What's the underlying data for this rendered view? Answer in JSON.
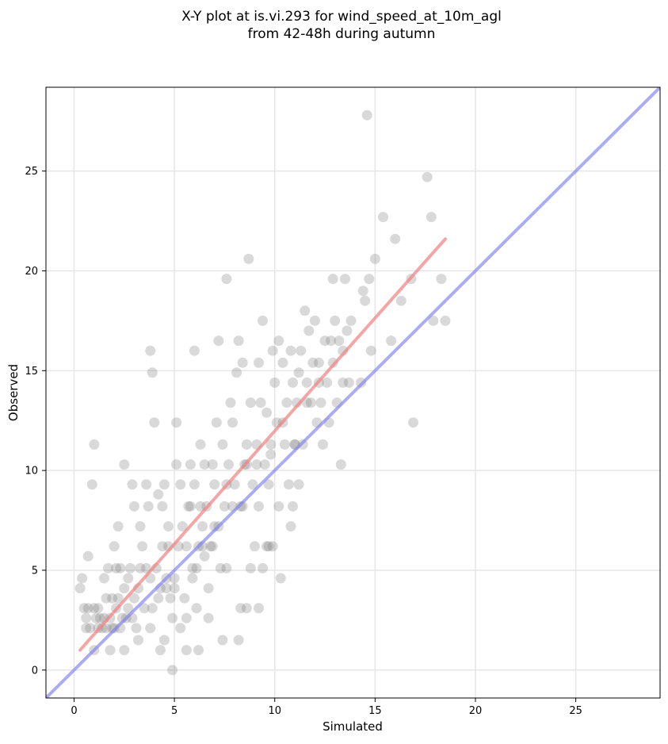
{
  "chart_data": {
    "type": "scatter",
    "title": "X-Y plot at is.vi.293 for wind_speed_at_10m_agl\nfrom 42-48h during autumn",
    "title_lines": [
      "X-Y plot at is.vi.293 for wind_speed_at_10m_agl",
      "from 42-48h during autumn"
    ],
    "xlabel": "Simulated",
    "ylabel": "Observed",
    "xlim": [
      -1.4,
      29.2
    ],
    "ylim": [
      -1.4,
      29.2
    ],
    "xticks": [
      0,
      5,
      10,
      15,
      20,
      25
    ],
    "yticks": [
      0,
      5,
      10,
      15,
      20,
      25
    ],
    "grid": true,
    "colors": {
      "points": "#808080",
      "fit_line": "#f08080",
      "identity_line": "#8080f0",
      "grid": "#e6e6e6"
    },
    "series": [
      {
        "points": [
          [
            0.4,
            4.6
          ],
          [
            0.3,
            4.1
          ],
          [
            0.5,
            3.1
          ],
          [
            0.7,
            3.1
          ],
          [
            0.6,
            2.6
          ],
          [
            0.8,
            2.1
          ],
          [
            0.6,
            2.1
          ],
          [
            0.7,
            5.7
          ],
          [
            0.9,
            9.3
          ],
          [
            1.0,
            11.3
          ],
          [
            1.0,
            3.1
          ],
          [
            1.1,
            2.6
          ],
          [
            1.2,
            3.1
          ],
          [
            1.2,
            2.1
          ],
          [
            1.3,
            2.6
          ],
          [
            1.4,
            2.1
          ],
          [
            1.5,
            2.6
          ],
          [
            1.5,
            4.6
          ],
          [
            1.6,
            2.1
          ],
          [
            1.7,
            5.1
          ],
          [
            1.8,
            2.6
          ],
          [
            1.9,
            3.6
          ],
          [
            2.0,
            2.1
          ],
          [
            2.0,
            6.2
          ],
          [
            2.1,
            5.1
          ],
          [
            2.2,
            7.2
          ],
          [
            2.2,
            3.6
          ],
          [
            2.3,
            2.1
          ],
          [
            2.4,
            2.6
          ],
          [
            2.5,
            10.3
          ],
          [
            2.5,
            4.1
          ],
          [
            2.6,
            2.6
          ],
          [
            2.7,
            3.1
          ],
          [
            2.8,
            5.1
          ],
          [
            2.9,
            9.3
          ],
          [
            3.0,
            8.2
          ],
          [
            3.0,
            3.6
          ],
          [
            3.1,
            2.1
          ],
          [
            3.2,
            4.1
          ],
          [
            3.3,
            7.2
          ],
          [
            3.4,
            6.2
          ],
          [
            3.5,
            3.1
          ],
          [
            3.6,
            5.1
          ],
          [
            3.7,
            8.2
          ],
          [
            3.8,
            16.0
          ],
          [
            3.9,
            14.9
          ],
          [
            3.8,
            4.6
          ],
          [
            4.0,
            12.4
          ],
          [
            4.1,
            5.1
          ],
          [
            4.2,
            8.8
          ],
          [
            4.3,
            4.1
          ],
          [
            4.4,
            6.2
          ],
          [
            4.5,
            9.3
          ],
          [
            4.6,
            4.6
          ],
          [
            4.7,
            7.2
          ],
          [
            4.8,
            3.6
          ],
          [
            4.9,
            2.6
          ],
          [
            5.0,
            4.1
          ],
          [
            5.1,
            10.3
          ],
          [
            5.1,
            12.4
          ],
          [
            5.2,
            6.2
          ],
          [
            5.3,
            9.3
          ],
          [
            5.4,
            7.2
          ],
          [
            5.5,
            3.6
          ],
          [
            5.6,
            2.6
          ],
          [
            5.7,
            8.2
          ],
          [
            5.8,
            10.3
          ],
          [
            5.9,
            5.1
          ],
          [
            6.0,
            9.3
          ],
          [
            6.0,
            16.0
          ],
          [
            6.1,
            3.1
          ],
          [
            6.2,
            6.2
          ],
          [
            6.3,
            11.3
          ],
          [
            6.4,
            7.2
          ],
          [
            6.5,
            10.3
          ],
          [
            6.6,
            8.2
          ],
          [
            6.7,
            2.6
          ],
          [
            6.8,
            6.2
          ],
          [
            6.9,
            10.3
          ],
          [
            7.0,
            9.3
          ],
          [
            7.1,
            12.4
          ],
          [
            7.2,
            16.5
          ],
          [
            7.3,
            5.1
          ],
          [
            7.4,
            11.3
          ],
          [
            7.5,
            8.2
          ],
          [
            7.6,
            19.6
          ],
          [
            7.7,
            10.3
          ],
          [
            7.8,
            13.4
          ],
          [
            7.9,
            12.4
          ],
          [
            8.0,
            9.3
          ],
          [
            8.1,
            14.9
          ],
          [
            8.2,
            16.5
          ],
          [
            8.3,
            8.2
          ],
          [
            8.4,
            15.4
          ],
          [
            8.5,
            10.3
          ],
          [
            8.6,
            11.3
          ],
          [
            8.7,
            20.6
          ],
          [
            8.8,
            13.4
          ],
          [
            8.9,
            9.3
          ],
          [
            9.0,
            6.2
          ],
          [
            9.1,
            11.3
          ],
          [
            9.2,
            15.4
          ],
          [
            9.3,
            13.4
          ],
          [
            9.4,
            17.5
          ],
          [
            9.5,
            10.3
          ],
          [
            9.6,
            12.9
          ],
          [
            9.7,
            6.2
          ],
          [
            9.8,
            11.3
          ],
          [
            9.9,
            16.0
          ],
          [
            10.0,
            14.4
          ],
          [
            10.1,
            12.4
          ],
          [
            10.2,
            16.5
          ],
          [
            10.3,
            4.6
          ],
          [
            10.4,
            15.4
          ],
          [
            10.5,
            11.3
          ],
          [
            10.6,
            13.4
          ],
          [
            10.7,
            9.3
          ],
          [
            10.8,
            16.0
          ],
          [
            10.9,
            14.4
          ],
          [
            11.0,
            11.3
          ],
          [
            11.1,
            13.4
          ],
          [
            11.2,
            14.9
          ],
          [
            11.3,
            16.0
          ],
          [
            11.4,
            11.3
          ],
          [
            11.5,
            18.0
          ],
          [
            11.6,
            14.4
          ],
          [
            11.7,
            17.0
          ],
          [
            11.8,
            13.4
          ],
          [
            11.9,
            15.4
          ],
          [
            12.0,
            17.5
          ],
          [
            12.1,
            12.4
          ],
          [
            12.2,
            15.4
          ],
          [
            12.3,
            13.4
          ],
          [
            12.4,
            11.3
          ],
          [
            12.5,
            16.5
          ],
          [
            12.6,
            14.4
          ],
          [
            12.7,
            12.4
          ],
          [
            12.8,
            16.5
          ],
          [
            12.9,
            19.6
          ],
          [
            13.0,
            17.5
          ],
          [
            13.1,
            13.4
          ],
          [
            13.2,
            16.5
          ],
          [
            13.3,
            10.3
          ],
          [
            13.4,
            14.4
          ],
          [
            13.5,
            19.6
          ],
          [
            13.6,
            17.0
          ],
          [
            13.7,
            14.4
          ],
          [
            13.8,
            17.5
          ],
          [
            14.3,
            14.4
          ],
          [
            14.4,
            19.0
          ],
          [
            14.5,
            18.5
          ],
          [
            14.6,
            27.8
          ],
          [
            14.7,
            19.6
          ],
          [
            14.8,
            16.0
          ],
          [
            15.0,
            20.6
          ],
          [
            15.4,
            22.7
          ],
          [
            15.8,
            16.5
          ],
          [
            16.0,
            21.6
          ],
          [
            16.3,
            18.5
          ],
          [
            16.8,
            19.6
          ],
          [
            16.9,
            12.4
          ],
          [
            17.6,
            24.7
          ],
          [
            17.8,
            22.7
          ],
          [
            17.9,
            17.5
          ],
          [
            18.3,
            19.6
          ],
          [
            18.5,
            17.5
          ],
          [
            4.5,
            1.5
          ],
          [
            4.9,
            0.0
          ],
          [
            3.2,
            1.5
          ],
          [
            4.3,
            1.0
          ],
          [
            5.6,
            1.0
          ],
          [
            6.2,
            1.0
          ],
          [
            7.4,
            1.5
          ],
          [
            8.2,
            1.5
          ],
          [
            2.5,
            1.0
          ],
          [
            1.8,
            1.0
          ],
          [
            1.0,
            1.0
          ],
          [
            5.3,
            2.1
          ],
          [
            3.8,
            2.1
          ],
          [
            2.9,
            2.6
          ],
          [
            8.3,
            3.1
          ],
          [
            8.6,
            3.1
          ],
          [
            9.2,
            3.1
          ],
          [
            9.4,
            5.1
          ],
          [
            9.6,
            6.2
          ],
          [
            9.9,
            6.2
          ],
          [
            8.8,
            5.1
          ],
          [
            7.6,
            5.1
          ],
          [
            6.7,
            4.1
          ],
          [
            6.5,
            5.7
          ],
          [
            7.0,
            7.2
          ],
          [
            7.9,
            8.2
          ],
          [
            8.4,
            8.2
          ],
          [
            9.2,
            8.2
          ],
          [
            9.7,
            9.3
          ],
          [
            10.2,
            8.2
          ],
          [
            10.8,
            7.2
          ],
          [
            10.9,
            8.2
          ],
          [
            11.2,
            9.3
          ],
          [
            3.6,
            9.3
          ],
          [
            4.4,
            8.2
          ],
          [
            5.8,
            8.2
          ],
          [
            6.3,
            8.2
          ],
          [
            6.9,
            6.2
          ],
          [
            4.7,
            6.2
          ],
          [
            5.6,
            6.2
          ],
          [
            3.3,
            5.1
          ],
          [
            2.7,
            4.6
          ],
          [
            1.6,
            3.6
          ],
          [
            2.1,
            3.1
          ],
          [
            3.9,
            3.1
          ],
          [
            4.2,
            3.6
          ],
          [
            4.6,
            4.1
          ],
          [
            5.0,
            4.6
          ],
          [
            5.9,
            4.6
          ],
          [
            6.1,
            5.1
          ],
          [
            6.4,
            6.2
          ],
          [
            7.2,
            7.2
          ],
          [
            7.6,
            9.3
          ],
          [
            8.6,
            10.3
          ],
          [
            9.1,
            10.3
          ],
          [
            9.8,
            10.8
          ],
          [
            10.4,
            12.4
          ],
          [
            11.0,
            11.3
          ],
          [
            11.6,
            13.4
          ],
          [
            12.2,
            14.4
          ],
          [
            12.9,
            15.4
          ],
          [
            13.4,
            16.0
          ],
          [
            2.3,
            5.1
          ],
          [
            1.9,
            2.1
          ]
        ]
      }
    ],
    "fit_line": {
      "x": [
        0.3,
        18.5
      ],
      "y": [
        1.0,
        21.6
      ]
    },
    "identity_line": {
      "x": [
        -1.4,
        29.2
      ],
      "y": [
        -1.4,
        29.2
      ]
    }
  }
}
